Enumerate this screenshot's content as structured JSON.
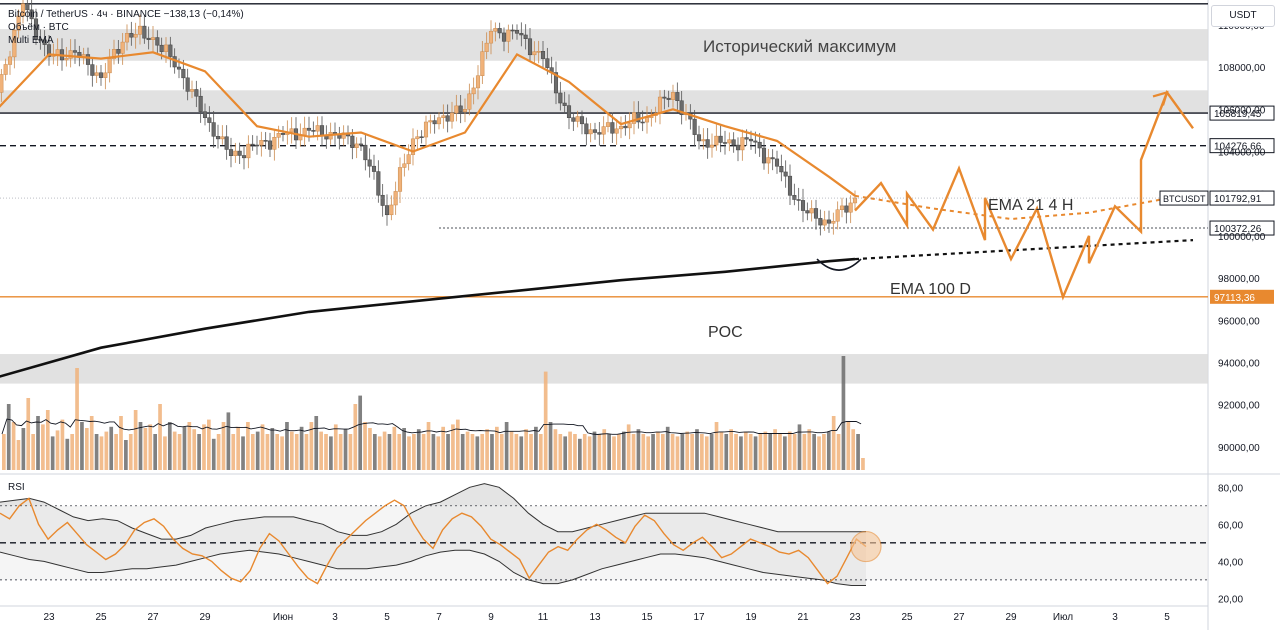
{
  "header": {
    "symbol_line": "Bitcoin / TetherUS · 4ч · BINANCE  −138,13 (−0,14%)",
    "volume_label": "Объём · BTC",
    "indicator_label": "Multi EMA",
    "currency_button": "USDT"
  },
  "colors": {
    "up": "#f0b27a",
    "down": "#6b6b6b",
    "ema21": "#e8892f",
    "ema100": "#111111",
    "poc": "#e8892f",
    "zone": "#dcdcdc",
    "forecast": "#e8892f"
  },
  "chart_data": [
    {
      "type": "line",
      "title": "",
      "x_ticks": [
        "23",
        "25",
        "27",
        "29",
        "Июн",
        "3",
        "5",
        "7",
        "9",
        "11",
        "13",
        "15",
        "17",
        "19",
        "21",
        "23",
        "25",
        "27",
        "29",
        "Июл",
        "3",
        "5"
      ],
      "y_ticks": [
        90000,
        92000,
        94000,
        96000,
        98000,
        100000,
        102000,
        104000,
        106000,
        108000,
        110000
      ],
      "y_tick_labels": [
        "90000,00",
        "92000,00",
        "94000,00",
        "96000,00",
        "98000,00",
        "100000,00",
        "102000,00",
        "104000,00",
        "106000,00",
        "108000,00",
        "110000,00"
      ],
      "ylim": [
        89000,
        111200
      ],
      "x_range_days": [
        "2025-05-21",
        "2025-07-06"
      ],
      "price_series": {
        "name": "BTCUSDT",
        "dates": [
          "05-21",
          "05-22",
          "05-23",
          "05-24",
          "05-25",
          "05-26",
          "05-27",
          "05-28",
          "05-29",
          "05-30",
          "05-31",
          "06-01",
          "06-02",
          "06-03",
          "06-04",
          "06-05",
          "06-06",
          "06-07",
          "06-08",
          "06-09",
          "06-10",
          "06-11",
          "06-12",
          "06-13",
          "06-14",
          "06-15",
          "06-16",
          "06-17",
          "06-18",
          "06-19",
          "06-20",
          "06-21",
          "06-22",
          "06-23"
        ],
        "values": [
          106800,
          111000,
          108500,
          108700,
          107500,
          109600,
          109400,
          107900,
          105600,
          103800,
          104300,
          104800,
          105000,
          104800,
          104300,
          101000,
          104600,
          105600,
          106000,
          109700,
          109600,
          108400,
          105600,
          104900,
          105200,
          105600,
          106800,
          104500,
          104400,
          104500,
          103300,
          101200,
          100600,
          101800
        ]
      },
      "ema21_4h": {
        "name": "EMA 21 4 H",
        "dates": [
          "05-21",
          "05-23",
          "05-25",
          "05-27",
          "05-29",
          "05-31",
          "06-02",
          "06-04",
          "06-06",
          "06-08",
          "06-10",
          "06-12",
          "06-14",
          "06-16",
          "06-18",
          "06-20",
          "06-22",
          "06-23"
        ],
        "values": [
          106000,
          108600,
          108400,
          108700,
          107800,
          105200,
          104700,
          104900,
          104000,
          104900,
          108600,
          107300,
          105300,
          106000,
          105200,
          104500,
          102800,
          101900
        ]
      },
      "ema100_d": {
        "name": "EMA 100 D",
        "dates": [
          "05-21",
          "05-25",
          "05-29",
          "06-02",
          "06-06",
          "06-10",
          "06-14",
          "06-18",
          "06-22",
          "06-23"
        ],
        "values": [
          93300,
          94700,
          95600,
          96400,
          96900,
          97400,
          97900,
          98300,
          98800,
          98900
        ]
      },
      "ema100_projection": {
        "dates": [
          "06-23",
          "07-06"
        ],
        "values": [
          98900,
          99800
        ]
      },
      "ema21_projection": {
        "dates": [
          "06-23",
          "06-26",
          "06-29",
          "07-02",
          "07-06"
        ],
        "values": [
          101900,
          101300,
          100800,
          101100,
          102000
        ]
      },
      "forecast_path": {
        "dates": [
          "06-23",
          "06-24",
          "06-25",
          "06-25",
          "06-26",
          "06-27",
          "06-28",
          "06-28",
          "06-29",
          "06-30",
          "07-01",
          "07-02",
          "07-02",
          "07-03",
          "07-04",
          "07-04",
          "07-05",
          "07-06"
        ],
        "values": [
          101200,
          102500,
          100500,
          102000,
          100300,
          103200,
          99800,
          101800,
          98900,
          101300,
          97100,
          100000,
          98700,
          101400,
          100200,
          103600,
          106800,
          105100
        ]
      },
      "horizontal_levels": [
        {
          "price": 111000,
          "style": "solid",
          "color": "#131722"
        },
        {
          "price": 105819.45,
          "label": "105819,45",
          "style": "solid",
          "color": "#131722"
        },
        {
          "price": 104276.66,
          "label": "104276,66",
          "style": "dashed",
          "color": "#131722"
        },
        {
          "price": 100372.26,
          "label": "100372,26",
          "style": "dotted",
          "color": "#131722"
        },
        {
          "price": 97113.36,
          "label": "97113,36",
          "style": "solid",
          "color": "#e8892f"
        }
      ],
      "current_price": {
        "label": "BTCUSDT",
        "value": 101792.91,
        "value_label": "101792,91"
      },
      "zones": [
        {
          "from": 108300,
          "to": 109800
        },
        {
          "from": 105800,
          "to": 106900
        },
        {
          "from": 93000,
          "to": 94400
        }
      ],
      "annotations": [
        {
          "text": "Исторический максимум"
        },
        {
          "text": "EMA 21 4 H"
        },
        {
          "text": "EMA 100 D"
        },
        {
          "text": "POC"
        }
      ]
    },
    {
      "type": "bar",
      "title": "",
      "name": "Объём · BTC",
      "values_relative": [
        0.3,
        0.55,
        0.4,
        0.25,
        0.35,
        0.6,
        0.3,
        0.45,
        0.38,
        0.5,
        0.28,
        0.33,
        0.42,
        0.26,
        0.3,
        0.85,
        0.4,
        0.35,
        0.45,
        0.3,
        0.28,
        0.32,
        0.36,
        0.3,
        0.45,
        0.25,
        0.3,
        0.5,
        0.4,
        0.35,
        0.38,
        0.3,
        0.55,
        0.28,
        0.4,
        0.32,
        0.3,
        0.36,
        0.4,
        0.34,
        0.3,
        0.38,
        0.42,
        0.26,
        0.3,
        0.4,
        0.48,
        0.3,
        0.36,
        0.28,
        0.4,
        0.3,
        0.32,
        0.38,
        0.3,
        0.35,
        0.3,
        0.28,
        0.4,
        0.32,
        0.3,
        0.36,
        0.3,
        0.4,
        0.45,
        0.32,
        0.3,
        0.28,
        0.38,
        0.3,
        0.34,
        0.3,
        0.55,
        0.62,
        0.4,
        0.35,
        0.3,
        0.28,
        0.32,
        0.3,
        0.36,
        0.3,
        0.35,
        0.28,
        0.3,
        0.34,
        0.3,
        0.4,
        0.3,
        0.28,
        0.36,
        0.3,
        0.38,
        0.42,
        0.3,
        0.32,
        0.3,
        0.28,
        0.3,
        0.34,
        0.3,
        0.36,
        0.3,
        0.4,
        0.32,
        0.3,
        0.28,
        0.34,
        0.3,
        0.36,
        0.3,
        0.82,
        0.4,
        0.34,
        0.3,
        0.28,
        0.32,
        0.3,
        0.26,
        0.3,
        0.28,
        0.32,
        0.3,
        0.34,
        0.3,
        0.28,
        0.3,
        0.32,
        0.38,
        0.3,
        0.34,
        0.3,
        0.28,
        0.3,
        0.32,
        0.3,
        0.36,
        0.3,
        0.28,
        0.3,
        0.32,
        0.3,
        0.34,
        0.3,
        0.28,
        0.3,
        0.4,
        0.32,
        0.3,
        0.34,
        0.3,
        0.28,
        0.32,
        0.3,
        0.28,
        0.3,
        0.32,
        0.3,
        0.34,
        0.3,
        0.28,
        0.32,
        0.3,
        0.38,
        0.3,
        0.34,
        0.3,
        0.28,
        0.3,
        0.32,
        0.45,
        0.3,
        0.95,
        0.4,
        0.34,
        0.3,
        0.1
      ]
    },
    {
      "type": "line",
      "title": "RSI",
      "y_ticks": [
        20,
        40,
        60,
        80
      ],
      "y_tick_labels": [
        "20,00",
        "40,00",
        "60,00",
        "80,00"
      ],
      "ylim": [
        17,
        85
      ],
      "levels": [
        30,
        50,
        70
      ],
      "rsi_values": [
        66,
        63,
        70,
        74,
        60,
        52,
        57,
        61,
        55,
        49,
        45,
        41,
        44,
        49,
        57,
        61,
        63,
        59,
        52,
        47,
        44,
        43,
        40,
        35,
        31,
        29,
        35,
        47,
        55,
        51,
        44,
        37,
        31,
        28,
        38,
        47,
        52,
        57,
        62,
        66,
        70,
        73,
        70,
        60,
        52,
        47,
        57,
        63,
        66,
        64,
        59,
        52,
        49,
        45,
        41,
        31,
        38,
        45,
        48,
        46,
        52,
        57,
        60,
        57,
        53,
        50,
        59,
        65,
        62,
        55,
        49,
        46,
        50,
        53,
        48,
        42,
        44,
        48,
        52,
        50,
        48,
        45,
        44,
        46,
        42,
        35,
        28,
        32,
        42,
        52,
        48
      ],
      "upper_band": [
        72,
        73,
        74,
        72,
        68,
        64,
        62,
        63,
        62,
        58,
        55,
        52,
        52,
        54,
        58,
        60,
        62,
        63,
        64,
        64,
        64,
        62,
        60,
        56,
        54,
        54,
        56,
        60,
        66,
        70,
        72,
        76,
        80,
        82,
        80,
        74,
        66,
        60,
        56,
        56,
        58,
        60,
        62,
        64,
        66,
        66,
        66,
        66,
        66,
        64,
        62,
        60,
        58,
        56,
        56,
        56,
        56,
        56,
        56,
        56
      ],
      "lower_band": [
        45,
        43,
        41,
        40,
        38,
        36,
        34,
        34,
        35,
        36,
        36,
        37,
        38,
        40,
        42,
        44,
        45,
        46,
        45,
        44,
        42,
        40,
        38,
        36,
        36,
        36,
        37,
        38,
        40,
        43,
        45,
        46,
        46,
        44,
        40,
        34,
        30,
        28,
        28,
        30,
        33,
        36,
        38,
        40,
        42,
        44,
        44,
        43,
        42,
        40,
        38,
        36,
        34,
        33,
        32,
        31,
        30,
        28,
        27,
        27
      ],
      "marker": {
        "value": 48
      }
    }
  ]
}
